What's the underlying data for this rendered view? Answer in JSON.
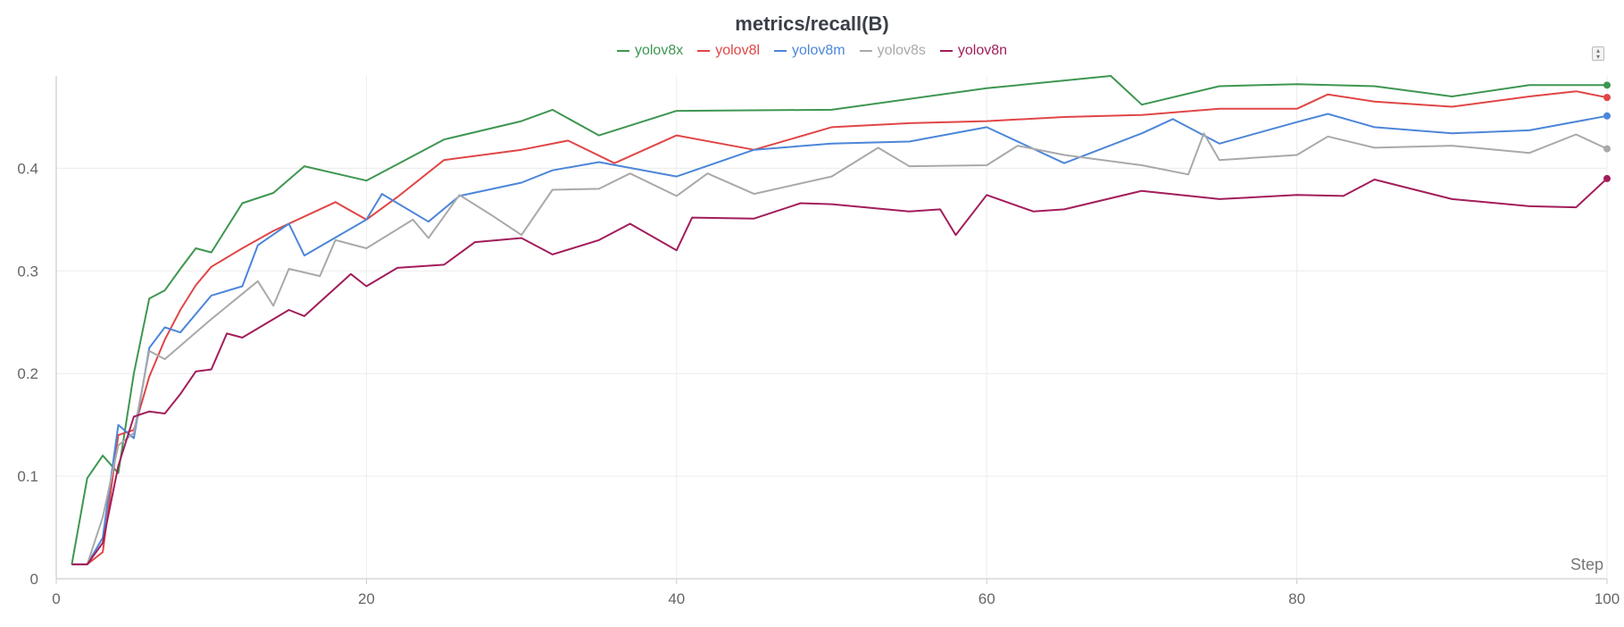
{
  "chart_data": {
    "type": "line",
    "title": "metrics/recall(B)",
    "xlabel": "Step",
    "ylabel": "",
    "xlim": [
      0,
      100
    ],
    "ylim": [
      0,
      0.49
    ],
    "xticks": [
      0,
      20,
      40,
      60,
      80,
      100
    ],
    "yticks": [
      0,
      0.1,
      0.2,
      0.3,
      0.4
    ],
    "ytick_labels": [
      "0",
      "0.1",
      "0.2",
      "0.3",
      "0.4"
    ],
    "grid": true,
    "legend": "top-center",
    "series": [
      {
        "name": "yolov8x",
        "color": "#3e9651",
        "x": [
          1,
          2,
          3,
          4,
          5,
          6,
          7,
          8,
          9,
          10,
          12,
          14,
          16,
          20,
          25,
          30,
          32,
          35,
          40,
          50,
          60,
          68,
          70,
          75,
          80,
          85,
          90,
          95,
          100
        ],
        "y": [
          0.014,
          0.098,
          0.12,
          0.103,
          0.2,
          0.273,
          0.281,
          0.302,
          0.322,
          0.318,
          0.366,
          0.376,
          0.402,
          0.388,
          0.428,
          0.446,
          0.457,
          0.432,
          0.456,
          0.457,
          0.478,
          0.49,
          0.462,
          0.48,
          0.482,
          0.48,
          0.47,
          0.481,
          0.481
        ]
      },
      {
        "name": "yolov8l",
        "color": "#e04646",
        "x": [
          1,
          2,
          3,
          4,
          5,
          6,
          7,
          8,
          9,
          10,
          12,
          14,
          18,
          20,
          22,
          25,
          30,
          33,
          36,
          40,
          45,
          50,
          55,
          60,
          65,
          70,
          75,
          80,
          82,
          85,
          90,
          95,
          98,
          100
        ],
        "y": [
          0.014,
          0.014,
          0.026,
          0.14,
          0.145,
          0.197,
          0.233,
          0.262,
          0.286,
          0.304,
          0.322,
          0.339,
          0.367,
          0.35,
          0.372,
          0.408,
          0.418,
          0.427,
          0.405,
          0.432,
          0.418,
          0.44,
          0.444,
          0.446,
          0.45,
          0.452,
          0.458,
          0.458,
          0.472,
          0.465,
          0.46,
          0.47,
          0.475,
          0.469
        ]
      },
      {
        "name": "yolov8m",
        "color": "#4c86d8",
        "x": [
          1,
          2,
          3,
          4,
          5,
          6,
          7,
          8,
          10,
          12,
          13,
          15,
          16,
          20,
          21,
          24,
          26,
          30,
          32,
          35,
          40,
          45,
          50,
          55,
          60,
          65,
          70,
          72,
          75,
          80,
          82,
          85,
          90,
          95,
          100
        ],
        "y": [
          0.014,
          0.014,
          0.04,
          0.15,
          0.137,
          0.225,
          0.245,
          0.24,
          0.276,
          0.285,
          0.325,
          0.346,
          0.315,
          0.35,
          0.375,
          0.348,
          0.373,
          0.386,
          0.398,
          0.406,
          0.392,
          0.418,
          0.424,
          0.426,
          0.44,
          0.405,
          0.434,
          0.448,
          0.424,
          0.445,
          0.453,
          0.44,
          0.434,
          0.437,
          0.451
        ]
      },
      {
        "name": "yolov8s",
        "color": "#a9a9a9",
        "x": [
          1,
          2,
          3,
          4,
          5,
          6,
          7,
          10,
          13,
          14,
          15,
          17,
          18,
          20,
          23,
          24,
          26,
          28,
          30,
          32,
          35,
          37,
          40,
          42,
          45,
          50,
          53,
          55,
          60,
          62,
          65,
          70,
          73,
          74,
          75,
          80,
          82,
          85,
          90,
          95,
          98,
          100
        ],
        "y": [
          0.014,
          0.014,
          0.06,
          0.13,
          0.142,
          0.222,
          0.214,
          0.253,
          0.29,
          0.266,
          0.302,
          0.295,
          0.33,
          0.322,
          0.35,
          0.332,
          0.374,
          0.355,
          0.335,
          0.379,
          0.38,
          0.395,
          0.373,
          0.395,
          0.375,
          0.392,
          0.42,
          0.402,
          0.403,
          0.422,
          0.413,
          0.403,
          0.394,
          0.434,
          0.408,
          0.413,
          0.431,
          0.42,
          0.422,
          0.415,
          0.433,
          0.419
        ]
      },
      {
        "name": "yolov8n",
        "color": "#a21d5a",
        "x": [
          1,
          2,
          3,
          4,
          5,
          6,
          7,
          8,
          9,
          10,
          11,
          12,
          15,
          16,
          19,
          20,
          22,
          25,
          27,
          30,
          32,
          35,
          37,
          40,
          41,
          45,
          48,
          50,
          55,
          57,
          58,
          60,
          63,
          65,
          70,
          75,
          80,
          83,
          85,
          90,
          95,
          98,
          100
        ],
        "y": [
          0.014,
          0.014,
          0.035,
          0.11,
          0.158,
          0.163,
          0.161,
          0.18,
          0.202,
          0.204,
          0.239,
          0.235,
          0.262,
          0.256,
          0.297,
          0.285,
          0.303,
          0.306,
          0.328,
          0.332,
          0.316,
          0.33,
          0.346,
          0.32,
          0.352,
          0.351,
          0.366,
          0.365,
          0.358,
          0.36,
          0.335,
          0.374,
          0.358,
          0.36,
          0.378,
          0.37,
          0.374,
          0.373,
          0.389,
          0.37,
          0.363,
          0.362,
          0.39
        ]
      }
    ]
  },
  "controls": {
    "menu_icon": "sort-arrows-icon"
  }
}
